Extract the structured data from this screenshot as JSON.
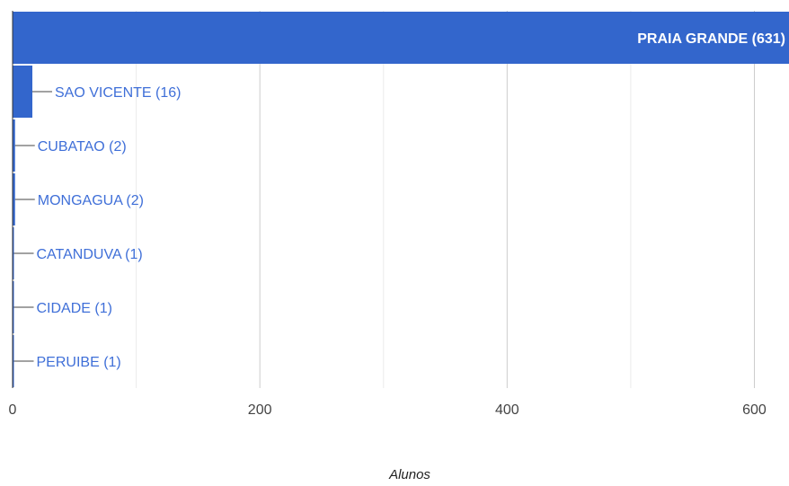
{
  "chart_data": {
    "type": "bar",
    "orientation": "horizontal",
    "categories": [
      "PRAIA GRANDE",
      "SAO VICENTE",
      "CUBATAO",
      "MONGAGUA",
      "CATANDUVA",
      "CIDADE",
      "PERUIBE"
    ],
    "values": [
      631,
      16,
      2,
      2,
      1,
      1,
      1
    ],
    "data_labels": [
      "PRAIA GRANDE (631)",
      "SAO VICENTE (16)",
      "CUBATAO (2)",
      "MONGAGUA (2)",
      "CATANDUVA (1)",
      "CIDADE (1)",
      "PERUIBE (1)"
    ],
    "xlabel": "Alunos",
    "xticks": [
      "0",
      "200",
      "400",
      "600"
    ],
    "xlim": [
      0,
      628
    ],
    "grid": true,
    "bar_color": "#3366cc",
    "label_color": "#3f6fd8"
  }
}
